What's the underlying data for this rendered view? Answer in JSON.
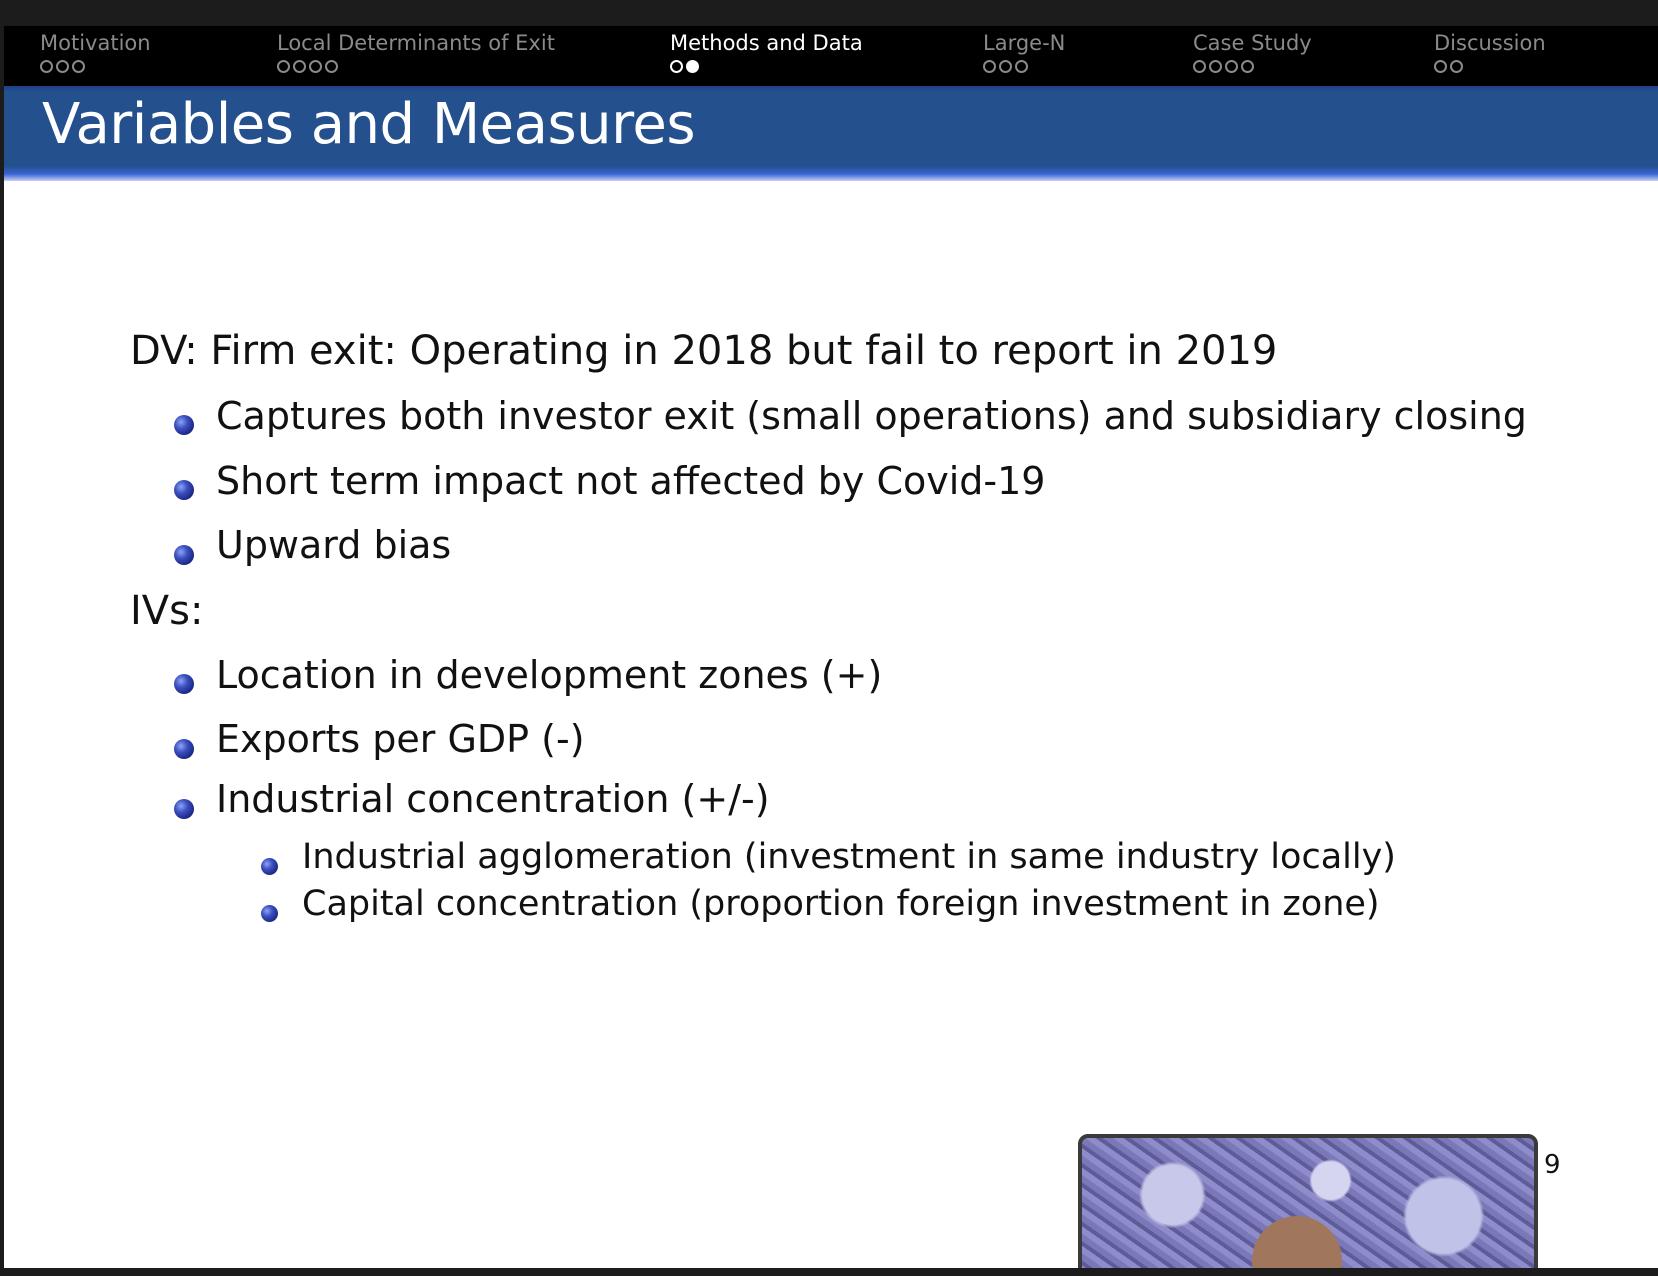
{
  "nav": {
    "sections": [
      {
        "label": "Motivation",
        "dots": 3,
        "current": -1
      },
      {
        "label": "Local Determinants of Exit",
        "dots": 4,
        "current": -1
      },
      {
        "label": "Methods and Data",
        "dots": 2,
        "current": 1,
        "active": true
      },
      {
        "label": "Large-N",
        "dots": 3,
        "current": -1
      },
      {
        "label": "Case Study",
        "dots": 4,
        "current": -1
      },
      {
        "label": "Discussion",
        "dots": 2,
        "current": -1
      }
    ]
  },
  "slide": {
    "title": "Variables and Measures",
    "dv": {
      "heading": "DV: Firm exit:  Operating in 2018 but fail to report in 2019",
      "bullets": [
        "Captures both investor exit (small operations) and subsidiary closing",
        "Short term impact not affected by Covid-19",
        "Upward bias"
      ]
    },
    "ivs": {
      "heading": "IVs:",
      "bullets": [
        "Location in development zones (+)",
        "Exports per GDP (-)",
        "Industrial concentration (+/-)"
      ],
      "sub_bullets": [
        "Industrial agglomeration (investment in same industry locally)",
        "Capital concentration (proportion foreign investment in zone)"
      ]
    },
    "page_number": "9"
  },
  "colors": {
    "title_band": "#24508e",
    "nav_background": "#000000",
    "bullet": "#3b4fc0"
  },
  "webcam": {
    "icon": "webcam-video-thumbnail"
  }
}
